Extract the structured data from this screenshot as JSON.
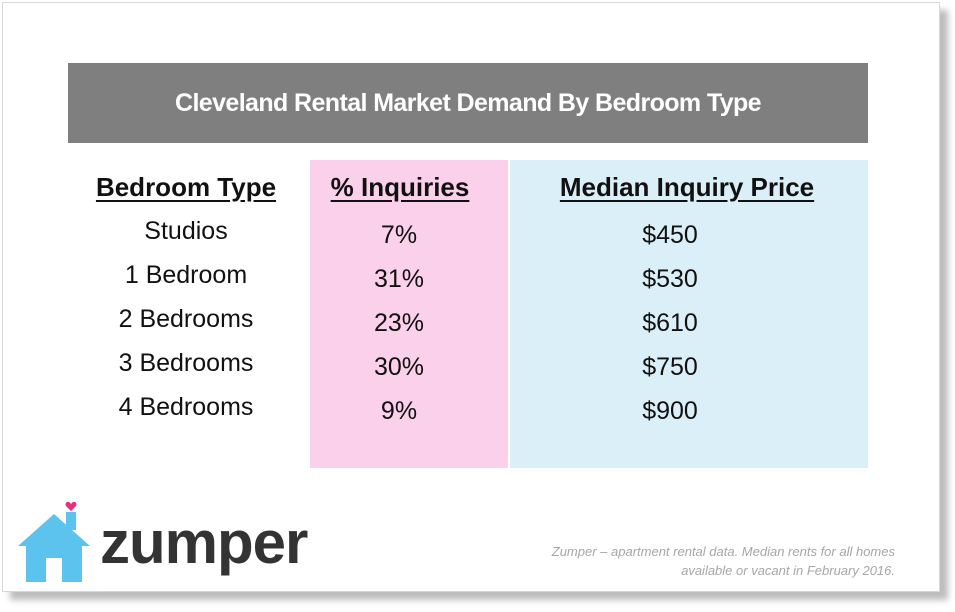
{
  "header": {
    "title": "Cleveland Rental Market Demand By Bedroom Type"
  },
  "table": {
    "columns": [
      "Bedroom Type",
      "% Inquiries",
      "Median Inquiry Price"
    ],
    "rows": [
      [
        "Studios",
        "7%",
        "$450"
      ],
      [
        "1 Bedroom",
        "31%",
        "$530"
      ],
      [
        "2 Bedrooms",
        "23%",
        "$610"
      ],
      [
        "3 Bedrooms",
        "30%",
        "$750"
      ],
      [
        "4 Bedrooms",
        "9%",
        "$900"
      ]
    ]
  },
  "logo": {
    "text": "zumper"
  },
  "footnote": {
    "lines": [
      "Zumper – apartment rental data. Median rents for all homes",
      "available or vacant in February 2016."
    ]
  }
}
